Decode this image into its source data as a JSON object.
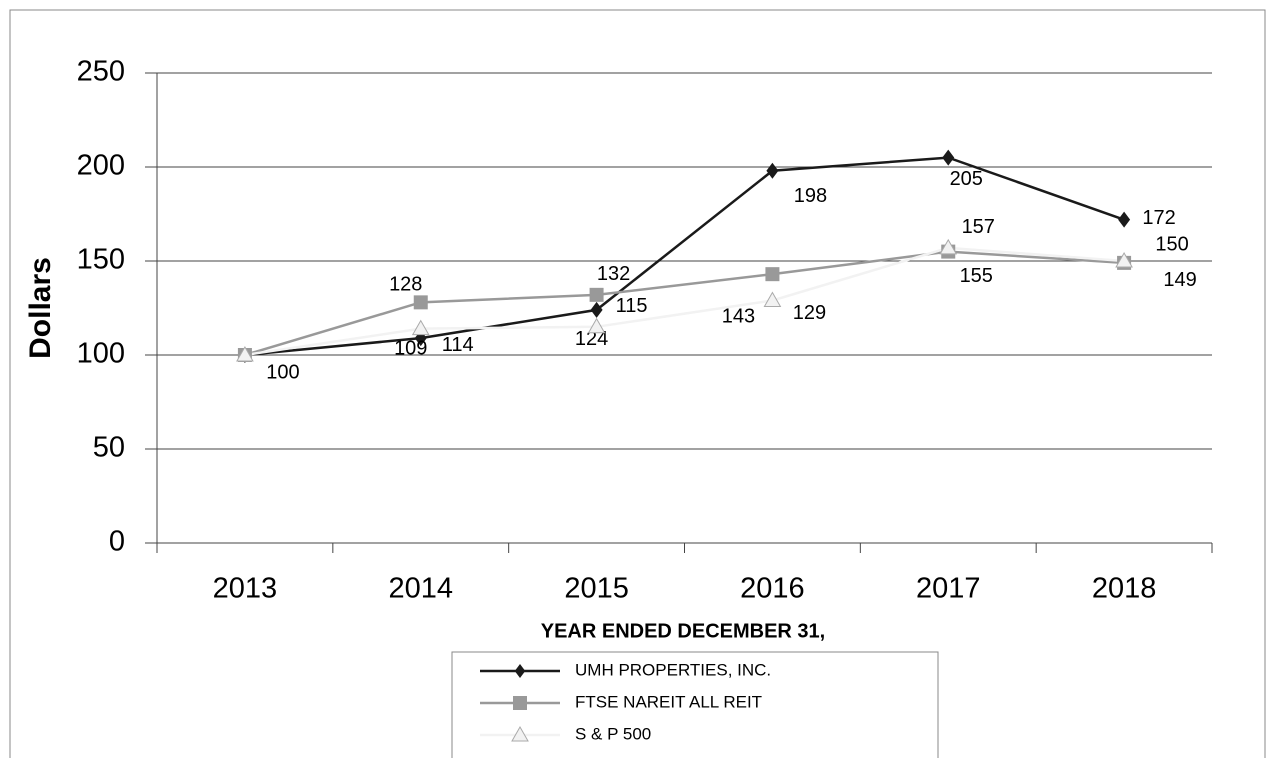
{
  "chart_data": {
    "type": "line",
    "x_label": "YEAR ENDED DECEMBER 31,",
    "y_label": "Dollars",
    "categories": [
      "2013",
      "2014",
      "2015",
      "2016",
      "2017",
      "2018"
    ],
    "series": [
      {
        "name": "UMH PROPERTIES, INC.",
        "color": "#1a1a1a",
        "marker": "diamond",
        "values": [
          100,
          109,
          124,
          198,
          205,
          172
        ]
      },
      {
        "name": "FTSE NAREIT ALL REIT",
        "color": "#999999",
        "marker": "square",
        "values": [
          100,
          128,
          132,
          143,
          155,
          149
        ]
      },
      {
        "name": "S & P 500",
        "color": "#f2f2f2",
        "marker": "triangle",
        "values": [
          100,
          114,
          115,
          129,
          157,
          150
        ]
      }
    ],
    "ylim": [
      0,
      250
    ],
    "yticks": [
      0,
      50,
      100,
      150,
      200,
      250
    ],
    "grid": true
  }
}
